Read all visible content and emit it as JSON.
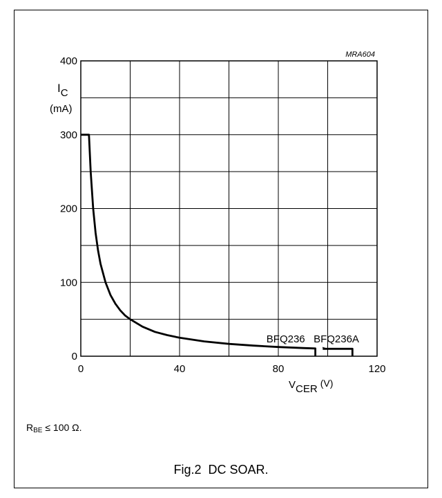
{
  "figure": {
    "code": "MRA604",
    "caption": "Fig.2  DC SOAR.",
    "note": {
      "symbol": "R",
      "subscript": "BE",
      "condition": "≤ 100 Ω."
    }
  },
  "chart_data": {
    "type": "line",
    "ylabel": {
      "symbol": "I",
      "subscript": "C",
      "unit": "(mA)"
    },
    "xlabel": {
      "symbol": "V",
      "subscript": "CER",
      "unit": "(V)"
    },
    "xlim": [
      0,
      120
    ],
    "ylim": [
      0,
      400
    ],
    "x_ticks": [
      "0",
      "40",
      "80",
      "120"
    ],
    "y_ticks": [
      "0",
      "100",
      "200",
      "300",
      "400"
    ],
    "grid": true,
    "series": [
      {
        "name": "BFQ236",
        "points": [
          [
            0,
            300
          ],
          [
            3.3,
            300
          ],
          [
            4,
            250
          ],
          [
            5,
            200
          ],
          [
            6,
            167
          ],
          [
            7,
            143
          ],
          [
            8,
            125
          ],
          [
            10,
            100
          ],
          [
            12,
            83
          ],
          [
            14,
            71
          ],
          [
            16,
            62
          ],
          [
            18,
            55
          ],
          [
            20,
            50
          ],
          [
            25,
            40
          ],
          [
            30,
            33
          ],
          [
            35,
            28.6
          ],
          [
            40,
            25
          ],
          [
            50,
            20
          ],
          [
            60,
            16.7
          ],
          [
            70,
            14.3
          ],
          [
            80,
            12.5
          ],
          [
            90,
            11.1
          ],
          [
            95,
            10.5
          ],
          [
            95,
            0
          ]
        ]
      },
      {
        "name": "BFQ236A",
        "points": [
          [
            98,
            10
          ],
          [
            110,
            10
          ],
          [
            110,
            0
          ]
        ]
      }
    ]
  }
}
